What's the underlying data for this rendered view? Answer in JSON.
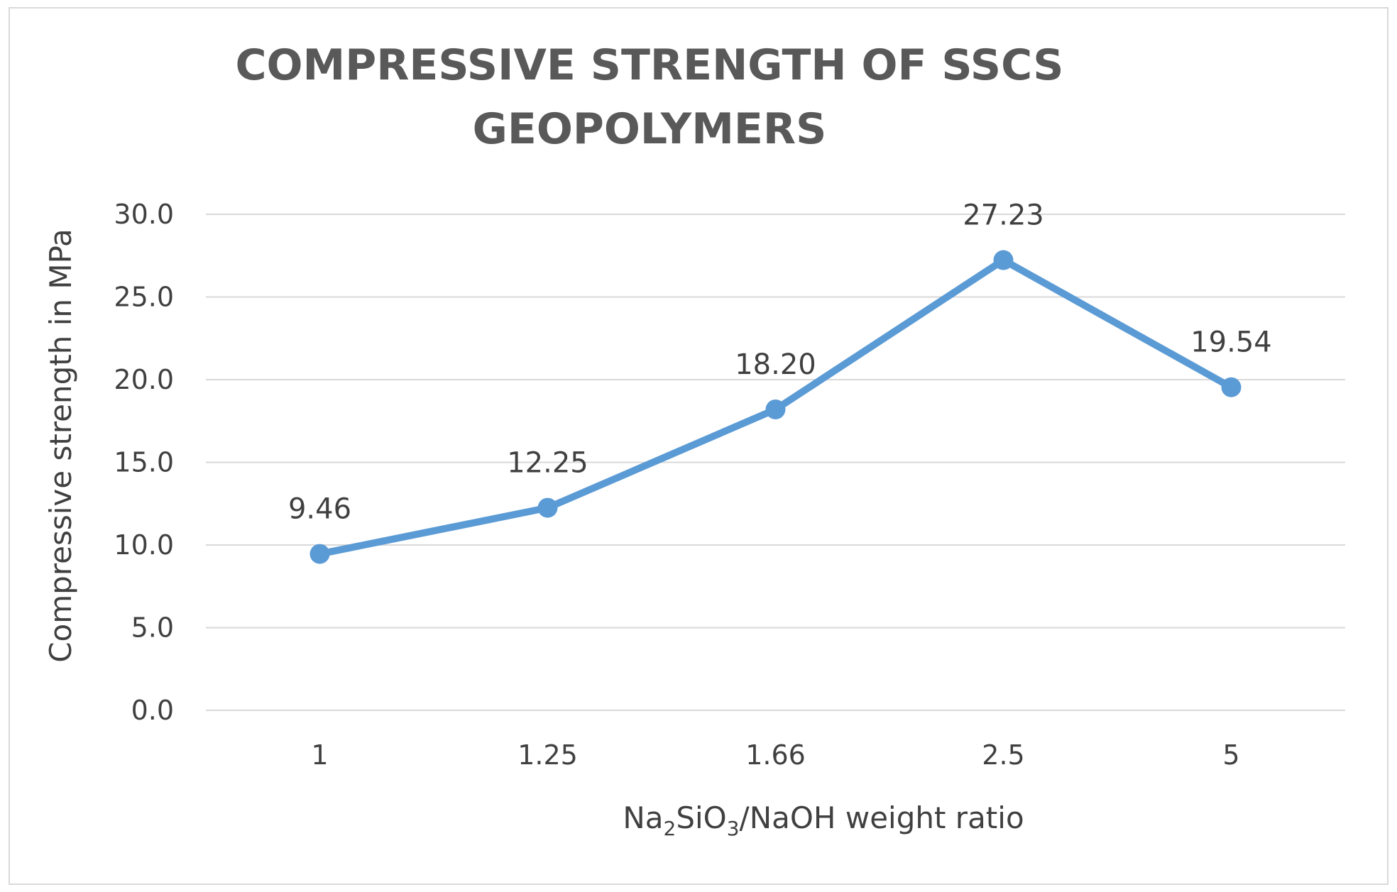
{
  "chart_data": {
    "type": "line",
    "title_line1": "COMPRESSIVE STRENGTH OF SSCS",
    "title_line2": "GEOPOLYMERS",
    "xlabel": {
      "part1": "Na",
      "sub1": "2",
      "part2": "SiO",
      "sub2": "3",
      "part3": "/NaOH weight ratio"
    },
    "ylabel": "Compressive strength in MPa",
    "categories": [
      "1",
      "1.25",
      "1.66",
      "2.5",
      "5"
    ],
    "series": [
      {
        "values": [
          9.46,
          12.25,
          18.2,
          27.23,
          19.54
        ],
        "labels": [
          "9.46",
          "12.25",
          "18.20",
          "27.23",
          "19.54"
        ],
        "color": "#5b9bd5"
      }
    ],
    "ylim": [
      0,
      30
    ],
    "yticks": [
      "0.0",
      "5.0",
      "10.0",
      "15.0",
      "20.0",
      "25.0",
      "30.0"
    ],
    "grid": true,
    "legend": "none"
  }
}
